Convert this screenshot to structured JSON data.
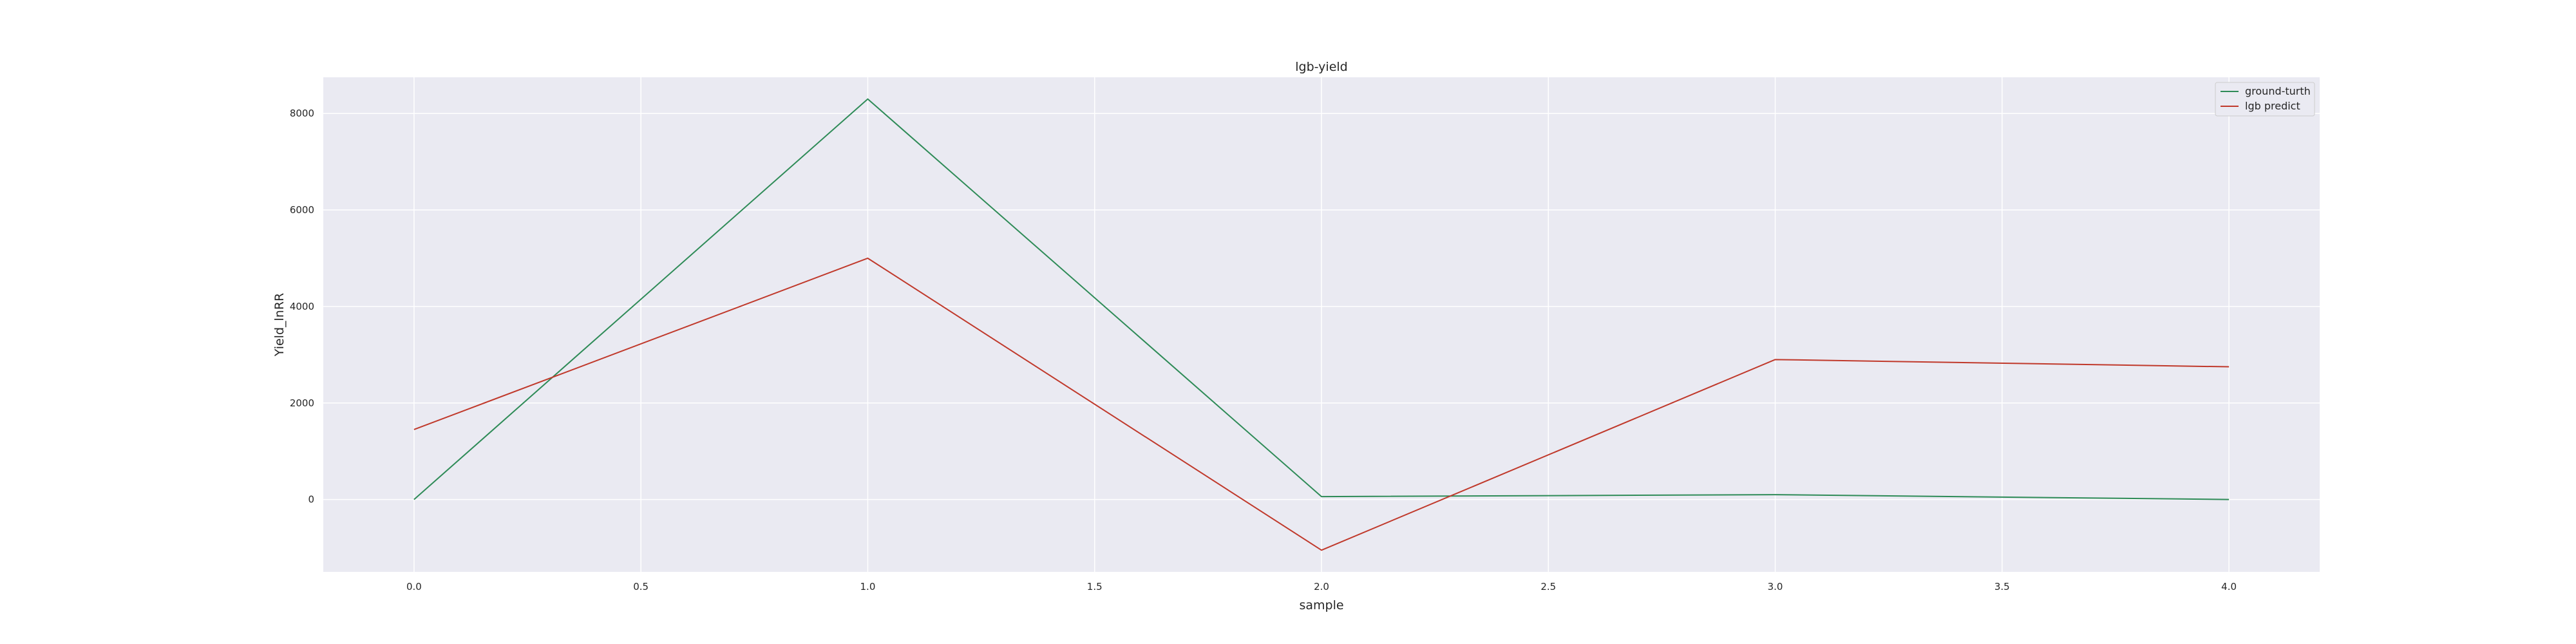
{
  "chart_data": {
    "type": "line",
    "title": "lgb-yield",
    "xlabel": "sample",
    "ylabel": "Yield_lnRR",
    "x": [
      0,
      1,
      2,
      3,
      4
    ],
    "xlim": [
      -0.2,
      4.2
    ],
    "ylim": [
      -1500,
      8750
    ],
    "xticks": [
      "0.0",
      "0.5",
      "1.0",
      "1.5",
      "2.0",
      "2.5",
      "3.0",
      "3.5",
      "4.0"
    ],
    "xtick_values": [
      0,
      0.5,
      1,
      1.5,
      2,
      2.5,
      3,
      3.5,
      4
    ],
    "yticks": [
      "0",
      "2000",
      "4000",
      "6000",
      "8000"
    ],
    "ytick_values": [
      0,
      2000,
      4000,
      6000,
      8000
    ],
    "grid": true,
    "legend_position": "top-right",
    "series": [
      {
        "name": "ground-turth",
        "color": "#2e8b57",
        "values": [
          0,
          8300,
          60,
          100,
          0
        ]
      },
      {
        "name": "lgb predict",
        "color": "#c0392b",
        "values": [
          1450,
          5000,
          -1050,
          2900,
          2750
        ]
      }
    ],
    "colors": {
      "plot_background": "#eaeaf2",
      "grid": "#ffffff"
    }
  }
}
